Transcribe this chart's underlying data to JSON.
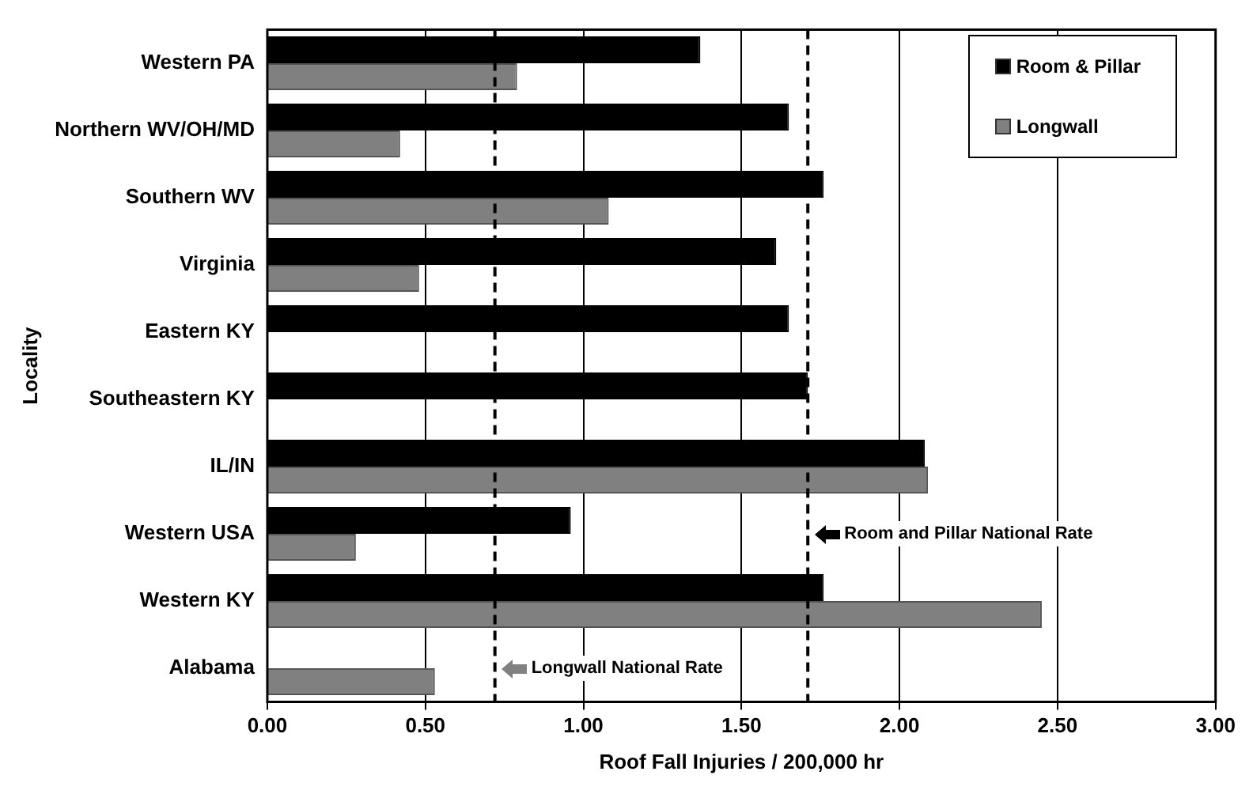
{
  "chart_data": {
    "type": "bar",
    "orientation": "horizontal",
    "xlabel": "Roof Fall Injuries / 200,000 hr",
    "ylabel": "Locality",
    "categories": [
      "Western PA",
      "Northern WV/OH/MD",
      "Southern WV",
      "Virginia",
      "Eastern KY",
      "Southeastern KY",
      "IL/IN",
      "Western USA",
      "Western KY",
      "Alabama"
    ],
    "series": [
      {
        "name": "Room & Pillar",
        "color": "#000000",
        "values": [
          1.37,
          1.65,
          1.76,
          1.61,
          1.65,
          1.71,
          2.08,
          0.96,
          1.76,
          null
        ]
      },
      {
        "name": "Longwall",
        "color": "#808080",
        "values": [
          0.79,
          0.42,
          1.08,
          0.48,
          null,
          null,
          2.09,
          0.28,
          2.45,
          0.53
        ]
      }
    ],
    "xlim": [
      0,
      3
    ],
    "xticks": [
      {
        "value": 0,
        "label": "0.00"
      },
      {
        "value": 0.5,
        "label": "0.50"
      },
      {
        "value": 1,
        "label": "1.00"
      },
      {
        "value": 1.5,
        "label": "1.50"
      },
      {
        "value": 2,
        "label": "2.00"
      },
      {
        "value": 2.5,
        "label": "2.50"
      },
      {
        "value": 3,
        "label": "3.00"
      }
    ],
    "ref_lines": [
      {
        "axis": "x",
        "value": 1.71,
        "label": "Room and Pillar National Rate",
        "color": "#000000",
        "line_style": "dashed"
      },
      {
        "axis": "x",
        "value": 0.72,
        "label": "Longwall National Rate",
        "color": "#000000",
        "line_style": "dashed"
      }
    ],
    "grid": "x",
    "legend": "top right"
  }
}
